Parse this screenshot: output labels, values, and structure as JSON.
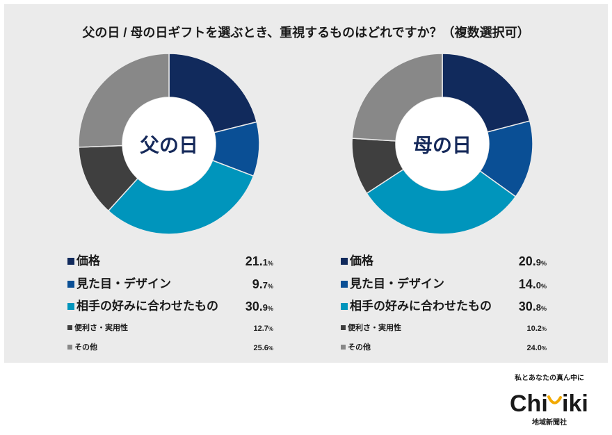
{
  "title": "父の日 / 母の日ギフトを選ぶとき、重視するものはどれですか？（複数選択可）",
  "colors": {
    "panel_background": "#ebebeb",
    "center_label": "#15295a",
    "series": [
      "#112a5c",
      "#0a4f95",
      "#0095bc",
      "#3f3f3f",
      "#888888"
    ],
    "logo_accent": "#f2a900"
  },
  "chart_data": [
    {
      "type": "pie",
      "title": "父の日",
      "categories": [
        "価格",
        "見た目・デザイン",
        "相手の好みに合わせたもの",
        "便利さ・実用性",
        "その他"
      ],
      "values": [
        21.1,
        9.7,
        30.9,
        12.7,
        25.6
      ],
      "unit": "%"
    },
    {
      "type": "pie",
      "title": "母の日",
      "categories": [
        "価格",
        "見た目・デザイン",
        "相手の好みに合わせたもの",
        "便利さ・実用性",
        "その他"
      ],
      "values": [
        20.9,
        14.0,
        30.8,
        10.2,
        24.0
      ],
      "unit": "%"
    }
  ],
  "logo": {
    "tagline": "私とあなたの真ん中に",
    "wordmark_left": "Chi",
    "wordmark_right": "iki",
    "company": "地域新聞社"
  }
}
